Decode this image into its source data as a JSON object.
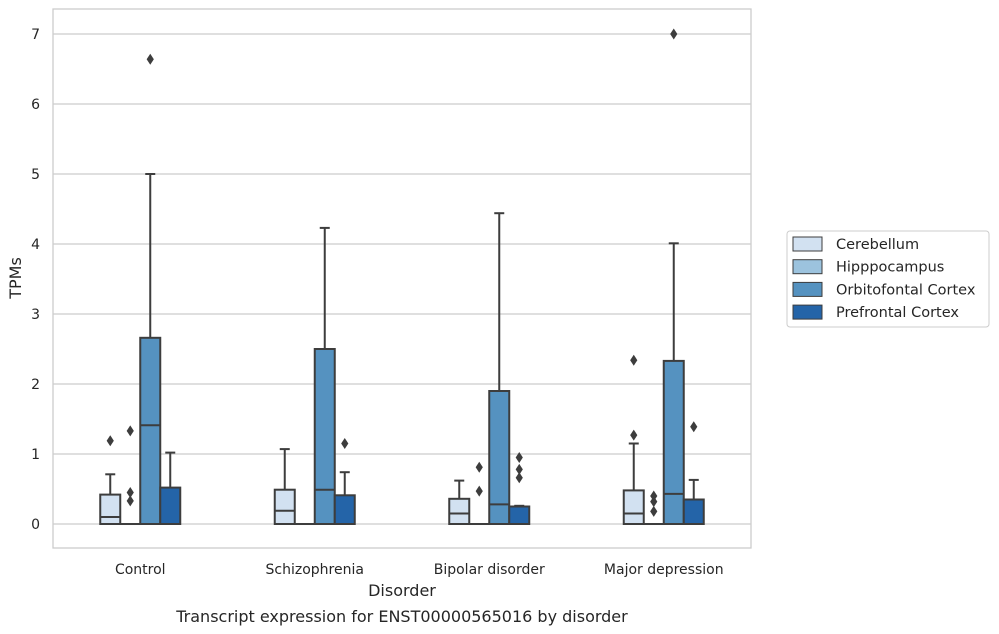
{
  "caption": "Transcript expression for ENST00000565016 by disorder",
  "chart_data": {
    "type": "box",
    "xlabel": "Disorder",
    "ylabel": "TPMs",
    "ylim": [
      -0.33,
      7.37
    ],
    "yticks": [
      0,
      1,
      2,
      3,
      4,
      5,
      6,
      7
    ],
    "grid": true,
    "legend_position": "right",
    "categories": [
      "Control",
      "Schizophrenia",
      "Bipolar disorder",
      "Major depression"
    ],
    "series": [
      {
        "name": "Cerebellum",
        "color": "#d2e1f1",
        "boxes": [
          {
            "whisker_low": 0,
            "q1": 0,
            "median": 0.1,
            "q3": 0.42,
            "whisker_high": 0.71,
            "outliers": [
              1.19
            ]
          },
          {
            "whisker_low": 0,
            "q1": 0,
            "median": 0.19,
            "q3": 0.49,
            "whisker_high": 1.07,
            "outliers": []
          },
          {
            "whisker_low": 0,
            "q1": 0,
            "median": 0.15,
            "q3": 0.36,
            "whisker_high": 0.62,
            "outliers": []
          },
          {
            "whisker_low": 0,
            "q1": 0,
            "median": 0.15,
            "q3": 0.48,
            "whisker_high": 1.15,
            "outliers": [
              1.27,
              2.34
            ]
          }
        ]
      },
      {
        "name": "Hipppocampus",
        "color": "#9cc3de",
        "boxes": [
          {
            "whisker_low": 0,
            "q1": 0,
            "median": 0,
            "q3": 0,
            "whisker_high": 0,
            "outliers": [
              0.33,
              0.45,
              1.33
            ]
          },
          {
            "whisker_low": 0,
            "q1": 0,
            "median": 0,
            "q3": 0,
            "whisker_high": 0,
            "outliers": []
          },
          {
            "whisker_low": 0,
            "q1": 0,
            "median": 0,
            "q3": 0,
            "whisker_high": 0,
            "outliers": [
              0.47,
              0.81
            ]
          },
          {
            "whisker_low": 0,
            "q1": 0,
            "median": 0,
            "q3": 0,
            "whisker_high": 0,
            "outliers": [
              0.18,
              0.32,
              0.4
            ]
          }
        ]
      },
      {
        "name": "Orbitofontal Cortex",
        "color": "#5592c0",
        "boxes": [
          {
            "whisker_low": 0,
            "q1": 0,
            "median": 1.41,
            "q3": 2.66,
            "whisker_high": 5.0,
            "outliers": [
              6.64
            ]
          },
          {
            "whisker_low": 0,
            "q1": 0,
            "median": 0.49,
            "q3": 2.5,
            "whisker_high": 4.23,
            "outliers": []
          },
          {
            "whisker_low": 0,
            "q1": 0,
            "median": 0.28,
            "q3": 1.9,
            "whisker_high": 4.44,
            "outliers": []
          },
          {
            "whisker_low": 0,
            "q1": 0,
            "median": 0.43,
            "q3": 2.33,
            "whisker_high": 4.01,
            "outliers": [
              7.0
            ]
          }
        ]
      },
      {
        "name": "Prefrontal Cortex",
        "color": "#2464a8",
        "boxes": [
          {
            "whisker_low": 0,
            "q1": 0,
            "median": 0,
            "q3": 0.52,
            "whisker_high": 1.02,
            "outliers": []
          },
          {
            "whisker_low": 0,
            "q1": 0,
            "median": 0,
            "q3": 0.41,
            "whisker_high": 0.74,
            "outliers": [
              1.15
            ]
          },
          {
            "whisker_low": 0,
            "q1": 0,
            "median": 0,
            "q3": 0.25,
            "whisker_high": 0.26,
            "outliers": [
              0.66,
              0.78,
              0.95
            ]
          },
          {
            "whisker_low": 0,
            "q1": 0,
            "median": 0,
            "q3": 0.35,
            "whisker_high": 0.63,
            "outliers": [
              1.39
            ]
          }
        ]
      }
    ]
  }
}
